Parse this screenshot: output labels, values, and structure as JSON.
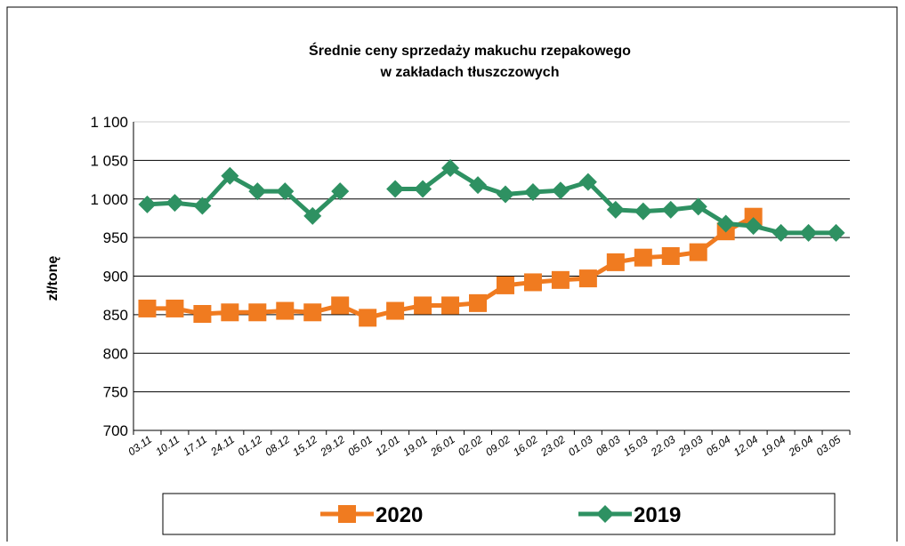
{
  "chart_data": {
    "type": "line",
    "title": "Średnie ceny sprzedaży makuchu rzepakowego",
    "subtitle": "w zakładach tłuszczowych",
    "y_label": "zł/tonę",
    "categories": [
      "03.11",
      "10.11",
      "17.11",
      "24.11",
      "01.12",
      "08.12",
      "15.12",
      "29.12",
      "05.01",
      "12.01",
      "19.01",
      "26.01",
      "02.02",
      "09.02",
      "16.02",
      "23.02",
      "01.03",
      "08.03",
      "15.03",
      "22.03",
      "29.03",
      "05.04",
      "12.04",
      "19.04",
      "26.04",
      "03.05"
    ],
    "series": [
      {
        "name": "2020",
        "color": "#f07b20",
        "marker": "square",
        "values": [
          858,
          858,
          851,
          853,
          853,
          855,
          853,
          862,
          846,
          855,
          862,
          862,
          865,
          888,
          892,
          895,
          897,
          918,
          924,
          926,
          931,
          958,
          977,
          null,
          null,
          null
        ]
      },
      {
        "name": "2019",
        "color": "#2e9162",
        "marker": "diamond",
        "values": [
          993,
          995,
          991,
          1030,
          1010,
          1010,
          978,
          1010,
          null,
          1013,
          1013,
          1040,
          1018,
          1006,
          1009,
          1011,
          1022,
          986,
          984,
          986,
          990,
          968,
          965,
          956,
          956,
          956
        ]
      }
    ],
    "ylim": [
      700,
      1100
    ],
    "yticks": [
      700,
      750,
      800,
      850,
      900,
      950,
      {
        "value": 1000,
        "label": "1 000"
      },
      {
        "value": 1050,
        "label": "1 050"
      },
      {
        "value": 1100,
        "label": "1 100"
      }
    ],
    "grid": true,
    "legend": "bottom"
  }
}
